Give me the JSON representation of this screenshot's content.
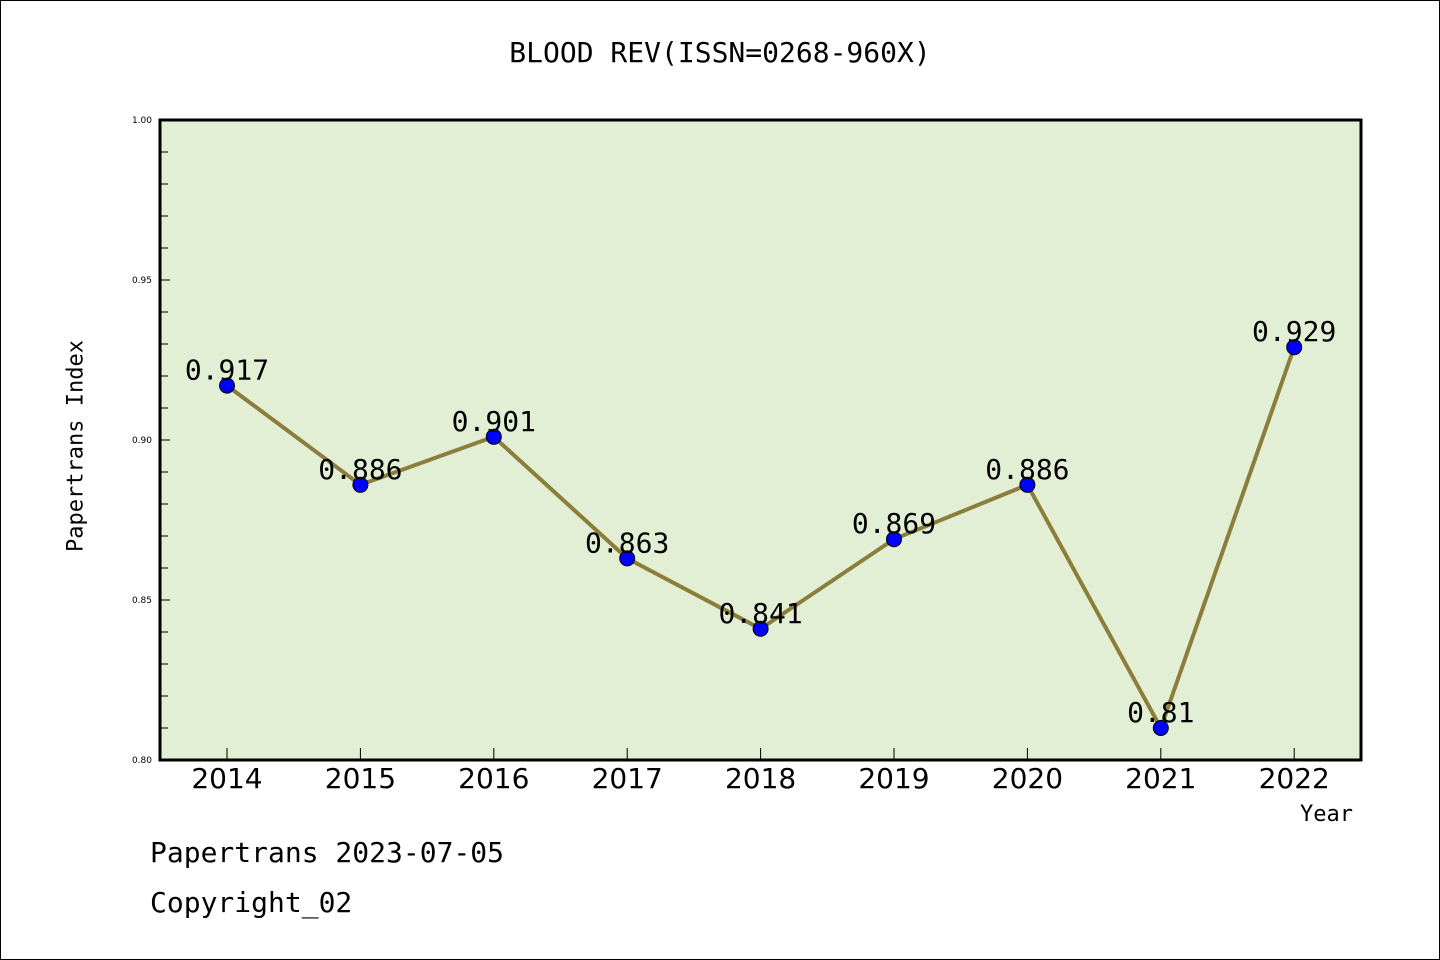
{
  "title": "BLOOD REV(ISSN=0268-960X)",
  "footer": {
    "line1": "Papertrans 2023-07-05",
    "line2": "Copyright_02"
  },
  "colors": {
    "plot_bg": "#e2efd4",
    "line": "#8b7d3a",
    "marker": "#0000ff"
  },
  "chart_data": {
    "type": "line",
    "title": "BLOOD REV(ISSN=0268-960X)",
    "xlabel": "Year",
    "ylabel": "Papertrans Index",
    "categories": [
      "2014",
      "2015",
      "2016",
      "2017",
      "2018",
      "2019",
      "2020",
      "2021",
      "2022"
    ],
    "values": [
      0.917,
      0.886,
      0.901,
      0.863,
      0.841,
      0.869,
      0.886,
      0.81,
      0.929
    ],
    "value_labels": [
      "0.917",
      "0.886",
      "0.901",
      "0.863",
      "0.841",
      "0.869",
      "0.886",
      "0.81",
      "0.929"
    ],
    "ylim": [
      0.8,
      1.0
    ],
    "yticks": [
      "0.80",
      "0.85",
      "0.90",
      "0.95",
      "1.00"
    ],
    "grid": false,
    "legend": "none"
  }
}
